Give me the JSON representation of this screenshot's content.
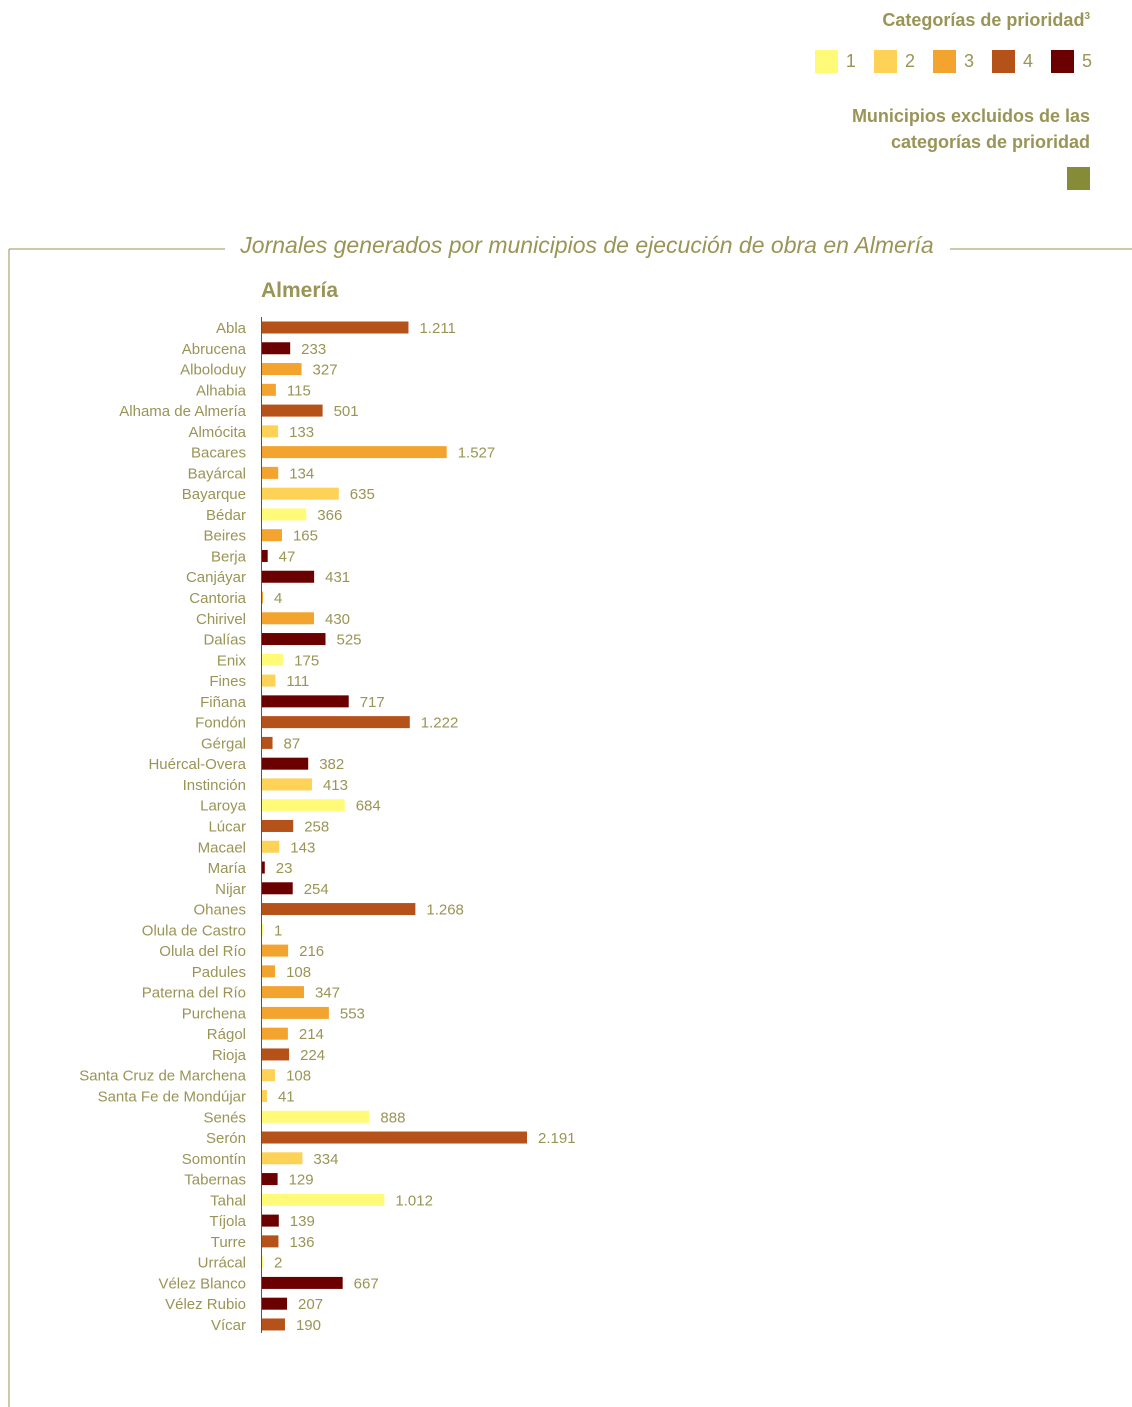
{
  "legend": {
    "title": "Categorías de prioridad",
    "superscript": "3",
    "items": [
      {
        "label": "1",
        "color": "#fffb78"
      },
      {
        "label": "2",
        "color": "#fdd257"
      },
      {
        "label": "3",
        "color": "#f2a42f"
      },
      {
        "label": "4",
        "color": "#b5521a"
      },
      {
        "label": "5",
        "color": "#6b0000"
      }
    ],
    "excluded_line1": "Municipios excluidos de las",
    "excluded_line2": "categorías de prioridad",
    "excluded_color": "#868b37"
  },
  "chart_data": {
    "type": "bar",
    "orientation": "horizontal",
    "title": "Jornales generados por municipios de ejecución de obra en Almería",
    "subtitle": "Almería",
    "colors": {
      "1": "#fffb78",
      "2": "#fdd257",
      "3": "#f2a42f",
      "4": "#b5521a",
      "5": "#6b0000"
    },
    "categories": [
      "Abla",
      "Abrucena",
      "Alboloduy",
      "Alhabia",
      "Alhama de Almería",
      "Almócita",
      "Bacares",
      "Bayárcal",
      "Bayarque",
      "Bédar",
      "Beires",
      "Berja",
      "Canjáyar",
      "Cantoria",
      "Chirivel",
      "Dalías",
      "Enix",
      "Fines",
      "Fiñana",
      "Fondón",
      "Gérgal",
      "Huércal-Overa",
      "Instinción",
      "Laroya",
      "Lúcar",
      "Macael",
      "María",
      "Nijar",
      "Ohanes",
      "Olula de Castro",
      "Olula del Río",
      "Padules",
      "Paterna del Río",
      "Purchena",
      "Rágol",
      "Rioja",
      "Santa Cruz de Marchena",
      "Santa Fe de Mondújar",
      "Senés",
      "Serón",
      "Somontín",
      "Tabernas",
      "Tahal",
      "Tíjola",
      "Turre",
      "Urrácal",
      "Vélez Blanco",
      "Vélez Rubio",
      "Vícar"
    ],
    "values": [
      1211,
      233,
      327,
      115,
      501,
      133,
      1527,
      134,
      635,
      366,
      165,
      47,
      431,
      4,
      430,
      525,
      175,
      111,
      717,
      1222,
      87,
      382,
      413,
      684,
      258,
      143,
      23,
      254,
      1268,
      1,
      216,
      108,
      347,
      553,
      214,
      224,
      108,
      41,
      888,
      2191,
      334,
      129,
      1012,
      139,
      136,
      2,
      667,
      207,
      190
    ],
    "value_labels": [
      "1.211",
      "233",
      "327",
      "115",
      "501",
      "133",
      "1.527",
      "134",
      "635",
      "366",
      "165",
      "47",
      "431",
      "4",
      "430",
      "525",
      "175",
      "111",
      "717",
      "1.222",
      "87",
      "382",
      "413",
      "684",
      "258",
      "143",
      "23",
      "254",
      "1.268",
      "1",
      "216",
      "108",
      "347",
      "553",
      "214",
      "224",
      "108",
      "41",
      "888",
      "2.191",
      "334",
      "129",
      "1.012",
      "139",
      "136",
      "2",
      "667",
      "207",
      "190"
    ],
    "priority": [
      4,
      5,
      3,
      3,
      4,
      2,
      3,
      3,
      2,
      1,
      3,
      5,
      5,
      3,
      3,
      5,
      1,
      2,
      5,
      4,
      4,
      5,
      2,
      1,
      4,
      2,
      5,
      5,
      4,
      1,
      3,
      3,
      3,
      3,
      3,
      4,
      2,
      2,
      1,
      4,
      2,
      5,
      1,
      5,
      4,
      1,
      5,
      5,
      4
    ],
    "xlim": [
      0,
      2191
    ]
  }
}
